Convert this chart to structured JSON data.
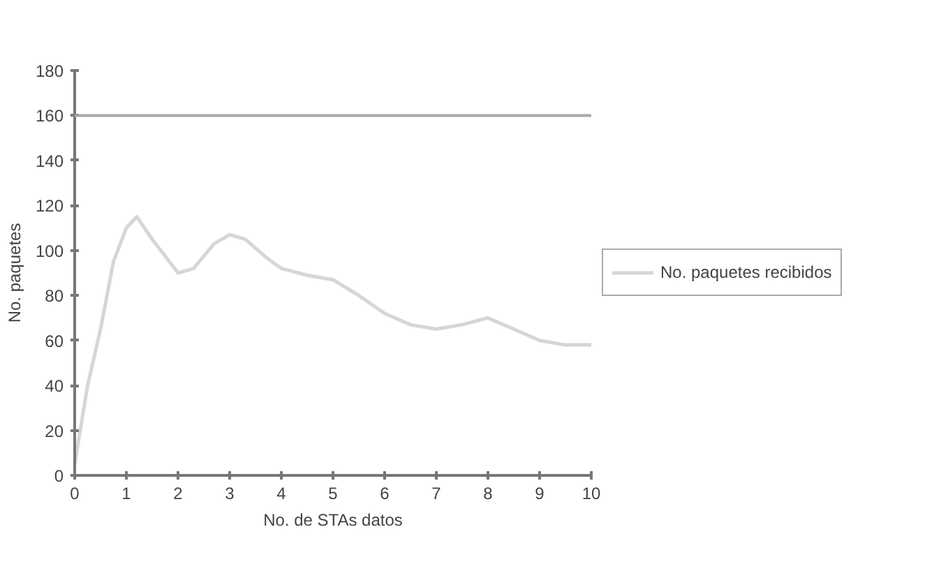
{
  "chart_data": {
    "type": "line",
    "xlabel": "No. de STAs datos",
    "ylabel": "No. paquetes",
    "series": [
      {
        "name": "No. paquetes recibidos",
        "color": "#d6d6d6",
        "x": [
          0,
          0.25,
          0.5,
          0.75,
          1,
          1.2,
          1.5,
          2,
          2.3,
          2.7,
          3,
          3.3,
          3.7,
          4,
          4.5,
          5,
          5.5,
          6,
          6.5,
          7,
          7.5,
          8,
          8.5,
          9,
          9.5,
          10
        ],
        "values": [
          5,
          40,
          65,
          95,
          110,
          115,
          105,
          90,
          92,
          103,
          107,
          105,
          97,
          92,
          89,
          87,
          80,
          72,
          67,
          65,
          67,
          70,
          65,
          60,
          58,
          58
        ]
      }
    ],
    "ref_lines": [
      {
        "axis": "y",
        "value": 160,
        "label": null,
        "color": "#a8a8a8"
      }
    ],
    "xlim": [
      0,
      10
    ],
    "ylim": [
      0,
      180
    ],
    "xticks": [
      0,
      1,
      2,
      3,
      4,
      5,
      6,
      7,
      8,
      9,
      10
    ],
    "yticks": [
      0,
      20,
      40,
      60,
      80,
      100,
      120,
      140,
      160,
      180
    ],
    "grid": false,
    "legend": "right",
    "marker": "none",
    "line_style": "solid"
  }
}
